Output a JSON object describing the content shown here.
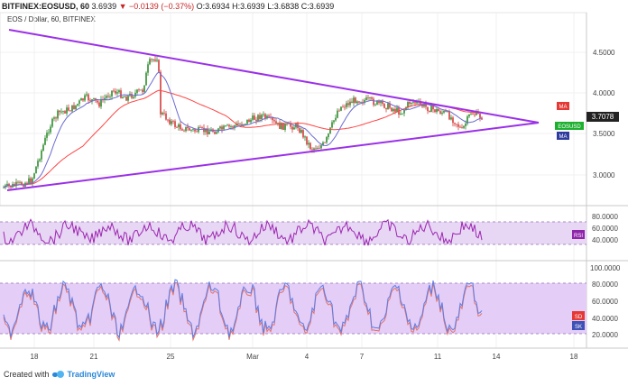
{
  "header": {
    "symbol": "BITFINEX:EOSUSD, 60",
    "last": "3.6939",
    "change_arrow": "▼",
    "change": "−0.0139 (−0.37%)",
    "open": "O:3.6934",
    "high": "H:3.6939",
    "low": "L:3.6838",
    "close": "C:3.6939"
  },
  "subtitle": "EOS / Dollar, 60, BITFINEX",
  "price_axis": [
    "4.5000",
    "4.0000",
    "3.5000",
    "3.0000"
  ],
  "price_labels": {
    "ma_top": "MA",
    "current_price": "3.7078",
    "symbol_tag": "EOSUSD",
    "ma_bottom": "MA"
  },
  "rsi_axis": [
    "80.0000",
    "60.0000",
    "40.0000"
  ],
  "rsi_tag": "RSI",
  "stoch_axis": [
    "100.0000",
    "80.0000",
    "60.0000",
    "40.0000",
    "20.0000"
  ],
  "stoch_tags": [
    "SD",
    "SK"
  ],
  "time_axis": [
    "18",
    "21",
    "25",
    "Mar",
    "4",
    "7",
    "11",
    "14",
    "18"
  ],
  "footer": {
    "created_with": "Created with",
    "brand": "TradingView"
  },
  "colors": {
    "trendline": "#9b30e8",
    "candle_up": "#2e8b2e",
    "candle_down": "#d43c3c",
    "ma_fast": "#6666cc",
    "ma_slow": "#ff4444",
    "rsi_line": "#9c27b0",
    "rsi_band": "#e8d6f5",
    "stoch_fill": "#d9b8f5",
    "stoch_sd": "#e57368",
    "stoch_sk": "#5c7ee6"
  }
}
